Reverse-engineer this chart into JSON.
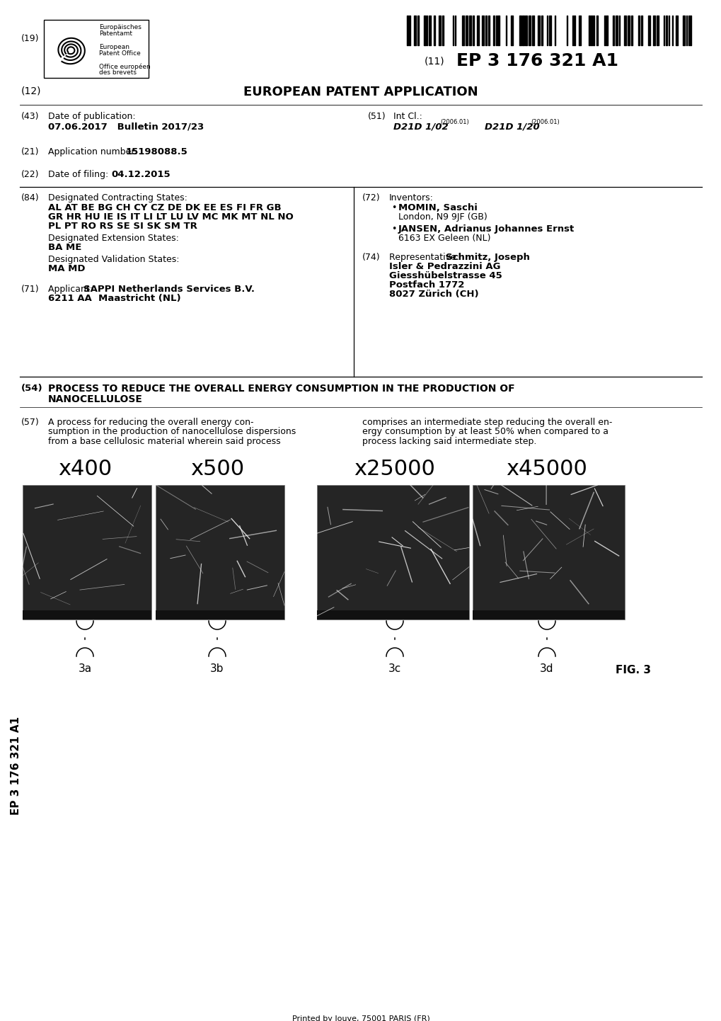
{
  "patent_number": "EP 3 176 321 A1",
  "doc_type_number": "(12)",
  "doc_type": "EUROPEAN PATENT APPLICATION",
  "pub_number": "(43)",
  "pub_label": "Date of publication:",
  "pub_date": "07.06.2017   Bulletin 2017/23",
  "intcl_number": "(51)",
  "intcl_label": "Int Cl.:",
  "intcl_val1": "D21D 1/02",
  "intcl_sup1": "(2006.01)",
  "intcl_val2": "D21D 1/20",
  "intcl_sup2": "(2006.01)",
  "appno_number": "(21)",
  "appno_label": "Application number:",
  "appno_val": "15198088.5",
  "filing_number": "(22)",
  "filing_label": "Date of filing:",
  "filing_date": "04.12.2015",
  "designated_number": "(84)",
  "designated_label": "Designated Contracting States:",
  "designated_states_line1": "AL AT BE BG CH CY CZ DE DK EE ES FI FR GB",
  "designated_states_line2": "GR HR HU IE IS IT LI LT LU LV MC MK MT NL NO",
  "designated_states_line3": "PL PT RO RS SE SI SK SM TR",
  "ext_label": "Designated Extension States:",
  "ext_states": "BA ME",
  "val_label": "Designated Validation States:",
  "val_states": "MA MD",
  "applicant_number": "(71)",
  "applicant_label": "Applicant: ",
  "applicant_name": "SAPPI Netherlands Services B.V.",
  "applicant_addr": "6211 AA  Maastricht (NL)",
  "inventors_number": "(72)",
  "inventors_label": "Inventors:",
  "inventor1_name": "MOMIN, Saschi",
  "inventor1_addr": "London, N9 9JF (GB)",
  "inventor2_name": "JANSEN, Adrianus Johannes Ernst",
  "inventor2_addr": "6163 EX Geleen (NL)",
  "rep_number": "(74)",
  "rep_label": "Representative: ",
  "rep_name": "Schmitz, Joseph",
  "rep_firm": "Isler & Pedrazzini AG",
  "rep_addr1": "Giesshübelstrasse 45",
  "rep_addr2": "Postfach 1772",
  "rep_addr3": "8027 Zürich (CH)",
  "title_number54": "(54)",
  "title_text_line1": "PROCESS TO REDUCE THE OVERALL ENERGY CONSUMPTION IN THE PRODUCTION OF",
  "title_text_line2": "NANOCELLULOSE",
  "abstract_number": "(57)",
  "abstract_left_line1": "A process for reducing the overall energy con-",
  "abstract_left_line2": "sumption in the production of nanocellulose dispersions",
  "abstract_left_line3": "from a base cellulosic material wherein said process",
  "abstract_right_line1": "comprises an intermediate step reducing the overall en-",
  "abstract_right_line2": "ergy consumption by at least 50% when compared to a",
  "abstract_right_line3": "process lacking said intermediate step.",
  "magnifications": [
    "x400",
    "x500",
    "x25000",
    "x45000"
  ],
  "fig_labels": [
    "3a",
    "3b",
    "3c",
    "3d"
  ],
  "fig_caption": "FIG. 3",
  "epo_line1": "Europäisches",
  "epo_line2": "Patentamt",
  "epo_line3": "European",
  "epo_line4": "Patent Office",
  "epo_line5": "Office européen",
  "epo_line6": "des brevets",
  "number19": "(19)",
  "number11": "(11)",
  "side_text": "EP 3 176 321 A1",
  "footer_text": "Printed by Jouve, 75001 PARIS (FR)",
  "bg_color": "#ffffff",
  "text_color": "#000000"
}
